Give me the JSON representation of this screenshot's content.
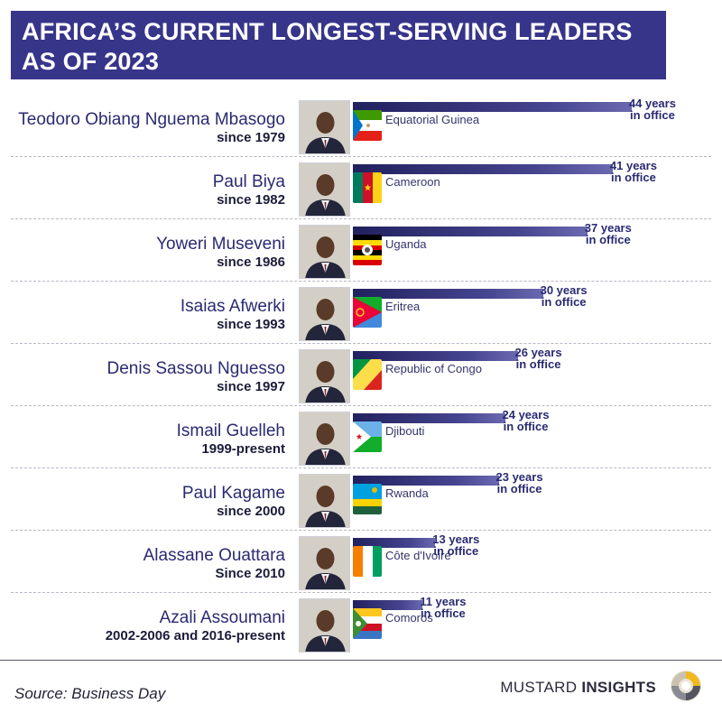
{
  "title": "AFRICA’S CURRENT LONGEST-SERVING LEADERS AS OF 2023",
  "source": "Source: Business Day",
  "brand": {
    "first": "MUSTARD ",
    "second": "INSIGHTS"
  },
  "colors": {
    "title_bg": "#37358a",
    "bar_dark": "#21215e",
    "bar_light": "#6a69b0",
    "name_text": "#2a2a72"
  },
  "icons": {
    "logo": "mustard-insights-logo-icon",
    "portrait": "leader-portrait-icon"
  },
  "chart_data": {
    "type": "bar",
    "orientation": "horizontal",
    "xlim": [
      0,
      48
    ],
    "value_suffix_line1": "years",
    "value_suffix_line2": "in office",
    "categories": [
      "Teodoro Obiang Nguema Mbasogo",
      "Paul Biya",
      "Yoweri Museveni",
      "Isaias Afwerki",
      "Denis Sassou Nguesso",
      "Ismail Guelleh",
      "Paul Kagame",
      "Alassane Ouattara",
      "Azali Assoumani"
    ],
    "values": [
      44,
      41,
      37,
      30,
      26,
      24,
      23,
      13,
      11
    ],
    "rows": [
      {
        "name": "Teodoro Obiang Nguema Mbasogo",
        "since": "since 1979",
        "country": "Equatorial Guinea",
        "flag": "equatorial-guinea-flag-icon",
        "years": 44
      },
      {
        "name": "Paul Biya",
        "since": "since 1982",
        "country": "Cameroon",
        "flag": "cameroon-flag-icon",
        "years": 41
      },
      {
        "name": "Yoweri Museveni",
        "since": "since 1986",
        "country": "Uganda",
        "flag": "uganda-flag-icon",
        "years": 37
      },
      {
        "name": "Isaias Afwerki",
        "since": "since 1993",
        "country": "Eritrea",
        "flag": "eritrea-flag-icon",
        "years": 30
      },
      {
        "name": "Denis Sassou Nguesso",
        "since": "since 1997",
        "country": "Republic of Congo",
        "flag": "republic-of-congo-flag-icon",
        "years": 26
      },
      {
        "name": "Ismail Guelleh",
        "since": "1999-present",
        "country": "Djibouti",
        "flag": "djibouti-flag-icon",
        "years": 24
      },
      {
        "name": "Paul Kagame",
        "since": "since 2000",
        "country": "Rwanda",
        "flag": "rwanda-flag-icon",
        "years": 23
      },
      {
        "name": "Alassane Ouattara",
        "since": "Since 2010",
        "country": "Côte d'Ivoire",
        "flag": "cote-d-ivoire-flag-icon",
        "years": 13
      },
      {
        "name": "Azali Assoumani",
        "since": "2002-2006 and 2016-present",
        "country": "Comoros",
        "flag": "comoros-flag-icon",
        "years": 11
      }
    ]
  }
}
